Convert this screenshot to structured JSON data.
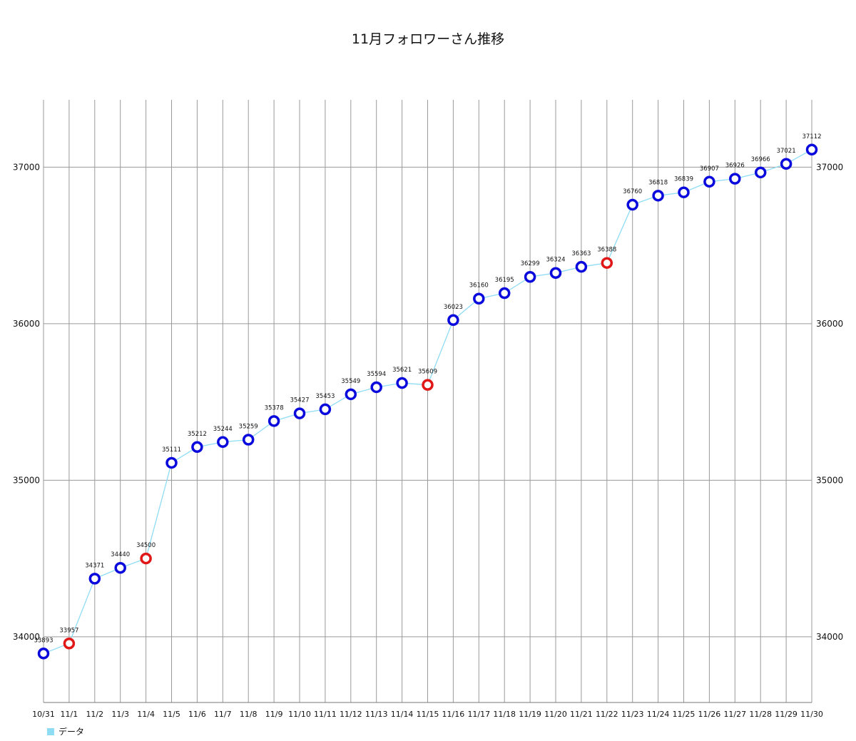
{
  "chart_data": {
    "type": "line",
    "title": "11月フォロワーさん推移",
    "xlabel": "",
    "ylabel": "",
    "ylim": [
      33580,
      37430
    ],
    "yticks": [
      34000,
      35000,
      36000,
      37000
    ],
    "grid": true,
    "legend_position": "bottom-left",
    "categories": [
      "10/31",
      "11/1",
      "11/2",
      "11/3",
      "11/4",
      "11/5",
      "11/6",
      "11/7",
      "11/8",
      "11/9",
      "11/10",
      "11/11",
      "11/12",
      "11/13",
      "11/14",
      "11/15",
      "11/16",
      "11/17",
      "11/18",
      "11/19",
      "11/20",
      "11/21",
      "11/22",
      "11/23",
      "11/24",
      "11/25",
      "11/26",
      "11/27",
      "11/28",
      "11/29",
      "11/30"
    ],
    "series": [
      {
        "name": "データ",
        "values": [
          33893,
          33957,
          34371,
          34440,
          34500,
          35111,
          35212,
          35244,
          35259,
          35378,
          35427,
          35453,
          35549,
          35594,
          35621,
          35609,
          36023,
          36160,
          36195,
          36299,
          36324,
          36363,
          36388,
          36760,
          36818,
          36839,
          36907,
          36926,
          36966,
          37021,
          37112
        ],
        "highlight_indices": [
          1,
          4,
          15,
          22
        ]
      }
    ],
    "colors": {
      "line": "#8fdcf5",
      "marker_normal": "#0a0adc",
      "marker_highlight": "#e01818",
      "legend_swatch": "#8fdcf5",
      "grid": "#9a9a9a"
    }
  }
}
